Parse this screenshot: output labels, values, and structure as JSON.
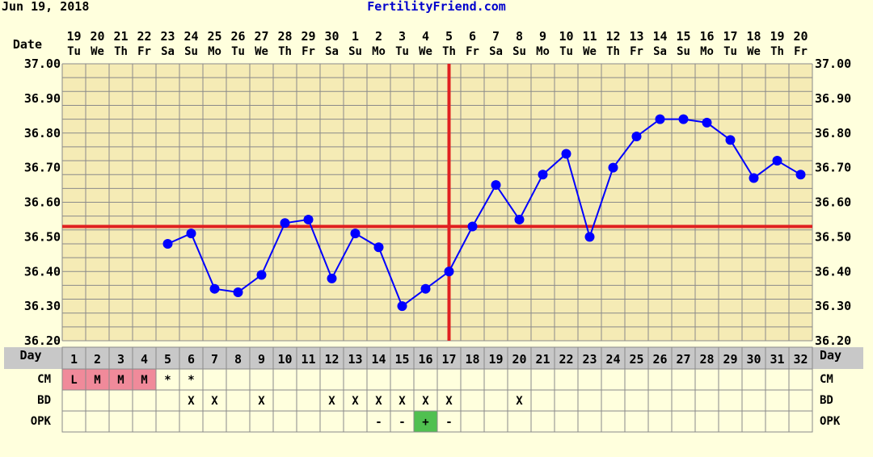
{
  "header": {
    "chart_start": "Jun 19, 2018",
    "site": "FertilityFriend.com"
  },
  "row_labels": {
    "date": "Date",
    "day": "Day",
    "cm": "CM",
    "bd": "BD",
    "opk": "OPK"
  },
  "colors": {
    "background": "#FFFFDD",
    "grid_cell": "#F5EBB5",
    "grid_line": "#8A8A8A",
    "temp_line": "#0000FF",
    "coverline": "#E02020",
    "menses_cell": "#F08A9A",
    "opk_positive": "#50C050",
    "site_text": "#0000CC"
  },
  "chart_data": {
    "type": "line",
    "dates": [
      "19",
      "20",
      "21",
      "22",
      "23",
      "24",
      "25",
      "26",
      "27",
      "28",
      "29",
      "30",
      "1",
      "2",
      "3",
      "4",
      "5",
      "6",
      "7",
      "8",
      "9",
      "10",
      "11",
      "12",
      "13",
      "14",
      "15",
      "16",
      "17",
      "18",
      "19",
      "20"
    ],
    "weekdays": [
      "Tu",
      "We",
      "Th",
      "Fr",
      "Sa",
      "Su",
      "Mo",
      "Tu",
      "We",
      "Th",
      "Fr",
      "Sa",
      "Su",
      "Mo",
      "Tu",
      "We",
      "Th",
      "Fr",
      "Sa",
      "Su",
      "Mo",
      "Tu",
      "We",
      "Th",
      "Fr",
      "Sa",
      "Su",
      "Mo",
      "Tu",
      "We",
      "Th",
      "Fr"
    ],
    "cycle_days": [
      "1",
      "2",
      "3",
      "4",
      "5",
      "6",
      "7",
      "8",
      "9",
      "10",
      "11",
      "12",
      "13",
      "14",
      "15",
      "16",
      "17",
      "18",
      "19",
      "20",
      "21",
      "22",
      "23",
      "24",
      "25",
      "26",
      "27",
      "28",
      "29",
      "30",
      "31",
      "32"
    ],
    "temps": [
      null,
      null,
      null,
      null,
      36.48,
      36.51,
      36.35,
      36.34,
      36.39,
      36.54,
      36.55,
      36.38,
      36.51,
      36.47,
      36.3,
      36.35,
      36.4,
      36.53,
      36.65,
      36.55,
      36.68,
      36.74,
      36.5,
      36.7,
      36.79,
      36.84,
      36.84,
      36.83,
      36.78,
      36.67,
      36.72,
      36.68
    ],
    "y_ticks": [
      "36.20",
      "36.30",
      "36.40",
      "36.50",
      "36.60",
      "36.70",
      "36.80",
      "36.90",
      "37.00"
    ],
    "ylim": [
      36.2,
      37.0
    ],
    "coverline": 36.53,
    "ovulation_day": 17,
    "cm": [
      "L",
      "M",
      "M",
      "M",
      "*",
      "*",
      "",
      "",
      "",
      "",
      "",
      "",
      "",
      "",
      "",
      "",
      "",
      "",
      "",
      "",
      "",
      "",
      "",
      "",
      "",
      "",
      "",
      "",
      "",
      "",
      "",
      ""
    ],
    "bd": [
      "",
      "",
      "",
      "",
      "",
      "X",
      "X",
      "",
      "X",
      "",
      "",
      "X",
      "X",
      "X",
      "X",
      "X",
      "X",
      "",
      "",
      "X",
      "",
      "",
      "",
      "",
      "",
      "",
      "",
      "",
      "",
      "",
      "",
      ""
    ],
    "opk": [
      "",
      "",
      "",
      "",
      "",
      "",
      "",
      "",
      "",
      "",
      "",
      "",
      "",
      "-",
      "-",
      "+",
      "-",
      "",
      "",
      "",
      "",
      "",
      "",
      "",
      "",
      "",
      "",
      "",
      "",
      "",
      "",
      ""
    ]
  }
}
